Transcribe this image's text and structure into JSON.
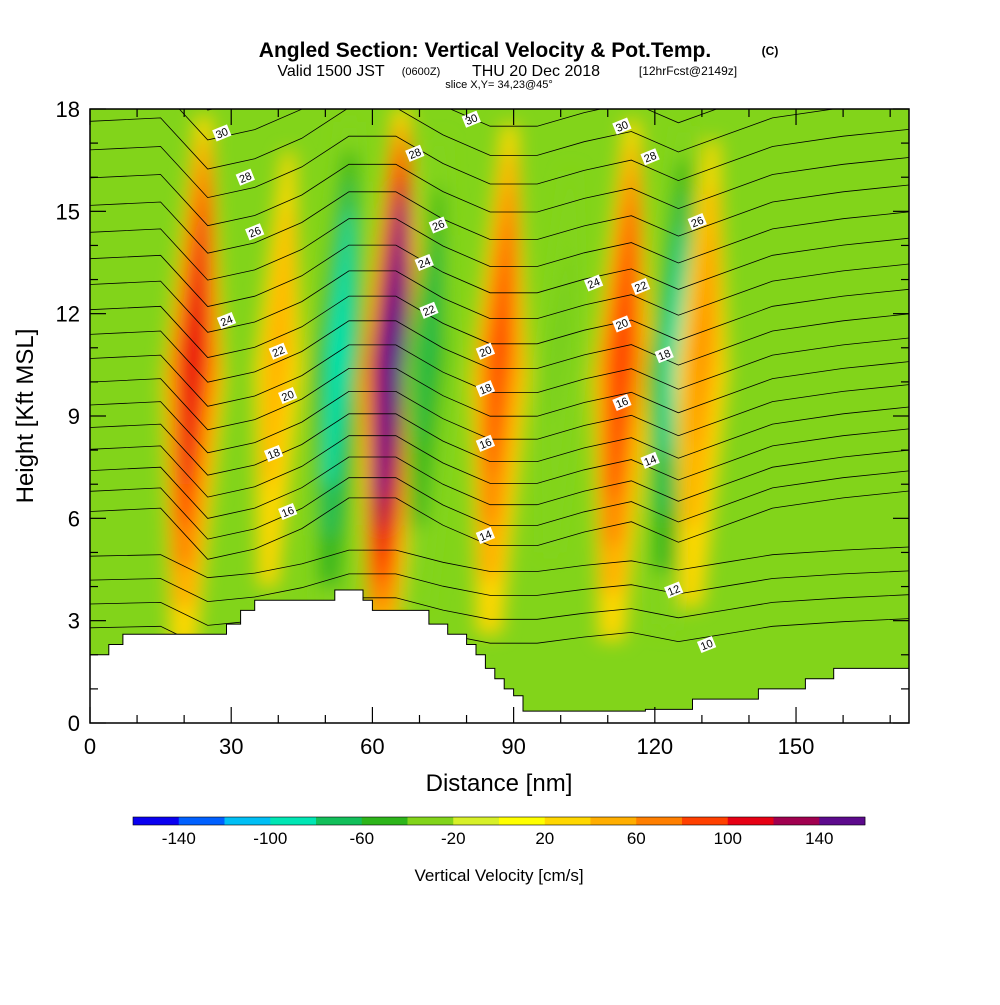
{
  "header": {
    "title": "Angled Section: Vertical Velocity & Pot.Temp.",
    "title_mark": "(C)",
    "valid_a": "Valid 1500 JST",
    "valid_utc": "(0600Z)",
    "valid_b": "THU 20 Dec 2018",
    "forecast": "[12hrFcst@2149z]",
    "slice": "slice X,Y= 34,23@45°"
  },
  "chart_data": {
    "type": "heatmap",
    "xlabel": "Distance [nm]",
    "ylabel": "Height [Kft MSL]",
    "xlim": [
      0,
      174
    ],
    "ylim": [
      0,
      18
    ],
    "x_ticks": [
      0,
      30,
      60,
      90,
      120,
      150
    ],
    "y_ticks": [
      0,
      3,
      6,
      9,
      12,
      15,
      18
    ],
    "colorbar": {
      "label": "Vertical Velocity [cm/s]",
      "tick_values": [
        -140,
        -100,
        -60,
        -20,
        20,
        60,
        100,
        140
      ],
      "bounds": [
        -160,
        -140,
        -120,
        -100,
        -80,
        -60,
        -40,
        -20,
        0,
        20,
        40,
        60,
        80,
        100,
        120,
        140,
        160
      ],
      "colors": [
        "#0a00f0",
        "#0060ff",
        "#00bff5",
        "#00e6b4",
        "#12bf5a",
        "#2db51a",
        "#82d41a",
        "#d7f028",
        "#ffff00",
        "#ffd700",
        "#ffae00",
        "#ff7f00",
        "#ff4000",
        "#e60014",
        "#a0004f",
        "#5c0a8c"
      ]
    },
    "vertical_velocity_columns": [
      {
        "x": 22,
        "peak_cm_s": 100,
        "kind": "updraft"
      },
      {
        "x": 40,
        "peak_cm_s": 40,
        "kind": "updraft"
      },
      {
        "x": 53,
        "peak_cm_s": -80,
        "kind": "downdraft"
      },
      {
        "x": 64,
        "peak_cm_s": 150,
        "kind": "updraft"
      },
      {
        "x": 72,
        "peak_cm_s": -50,
        "kind": "downdraft"
      },
      {
        "x": 87,
        "peak_cm_s": 75,
        "kind": "updraft"
      },
      {
        "x": 100,
        "peak_cm_s": -30,
        "kind": "downdraft"
      },
      {
        "x": 113,
        "peak_cm_s": 85,
        "kind": "updraft"
      },
      {
        "x": 124,
        "peak_cm_s": -70,
        "kind": "downdraft"
      },
      {
        "x": 130,
        "peak_cm_s": 50,
        "kind": "updraft"
      }
    ],
    "terrain": [
      [
        0,
        2.0
      ],
      [
        4,
        2.0
      ],
      [
        4,
        2.3
      ],
      [
        7,
        2.3
      ],
      [
        7,
        2.6
      ],
      [
        29,
        2.6
      ],
      [
        29,
        2.9
      ],
      [
        32,
        2.9
      ],
      [
        32,
        3.3
      ],
      [
        35,
        3.3
      ],
      [
        35,
        3.6
      ],
      [
        52,
        3.6
      ],
      [
        52,
        3.9
      ],
      [
        58,
        3.9
      ],
      [
        58,
        3.6
      ],
      [
        60,
        3.6
      ],
      [
        60,
        3.3
      ],
      [
        72,
        3.3
      ],
      [
        72,
        2.9
      ],
      [
        76,
        2.9
      ],
      [
        76,
        2.6
      ],
      [
        80,
        2.6
      ],
      [
        80,
        2.3
      ],
      [
        82,
        2.3
      ],
      [
        82,
        2.0
      ],
      [
        84,
        2.0
      ],
      [
        84,
        1.6
      ],
      [
        86,
        1.6
      ],
      [
        86,
        1.3
      ],
      [
        88,
        1.3
      ],
      [
        88,
        1.0
      ],
      [
        90,
        1.0
      ],
      [
        90,
        0.8
      ],
      [
        92,
        0.8
      ],
      [
        92,
        0.35
      ],
      [
        118,
        0.35
      ],
      [
        118,
        0.4
      ],
      [
        128,
        0.4
      ],
      [
        128,
        0.7
      ],
      [
        142,
        0.7
      ],
      [
        142,
        1.0
      ],
      [
        152,
        1.0
      ],
      [
        152,
        1.3
      ],
      [
        158,
        1.3
      ],
      [
        158,
        1.6
      ],
      [
        174,
        1.6
      ]
    ],
    "pot_temp_contour_labels": [
      {
        "label": "30",
        "x": 28,
        "y": 17.3
      },
      {
        "label": "28",
        "x": 33,
        "y": 16.0
      },
      {
        "label": "26",
        "x": 35,
        "y": 14.4
      },
      {
        "label": "24",
        "x": 29,
        "y": 11.8
      },
      {
        "label": "22",
        "x": 40,
        "y": 10.9
      },
      {
        "label": "20",
        "x": 42,
        "y": 9.6
      },
      {
        "label": "18",
        "x": 39,
        "y": 7.9
      },
      {
        "label": "16",
        "x": 42,
        "y": 6.2
      },
      {
        "label": "28",
        "x": 69,
        "y": 16.7
      },
      {
        "label": "26",
        "x": 74,
        "y": 14.6
      },
      {
        "label": "24",
        "x": 71,
        "y": 13.5
      },
      {
        "label": "22",
        "x": 72,
        "y": 12.1
      },
      {
        "label": "30",
        "x": 81,
        "y": 17.7
      },
      {
        "label": "20",
        "x": 84,
        "y": 10.9
      },
      {
        "label": "18",
        "x": 84,
        "y": 9.8
      },
      {
        "label": "16",
        "x": 84,
        "y": 8.2
      },
      {
        "label": "14",
        "x": 84,
        "y": 5.5
      },
      {
        "label": "24",
        "x": 107,
        "y": 12.9
      },
      {
        "label": "30",
        "x": 113,
        "y": 17.5
      },
      {
        "label": "28",
        "x": 119,
        "y": 16.6
      },
      {
        "label": "26",
        "x": 129,
        "y": 14.7
      },
      {
        "label": "22",
        "x": 117,
        "y": 12.8
      },
      {
        "label": "20",
        "x": 113,
        "y": 11.7
      },
      {
        "label": "18",
        "x": 122,
        "y": 10.8
      },
      {
        "label": "16",
        "x": 113,
        "y": 9.4
      },
      {
        "label": "14",
        "x": 119,
        "y": 7.7
      },
      {
        "label": "12",
        "x": 124,
        "y": 3.9
      },
      {
        "label": "10",
        "x": 131,
        "y": 2.3
      }
    ]
  }
}
